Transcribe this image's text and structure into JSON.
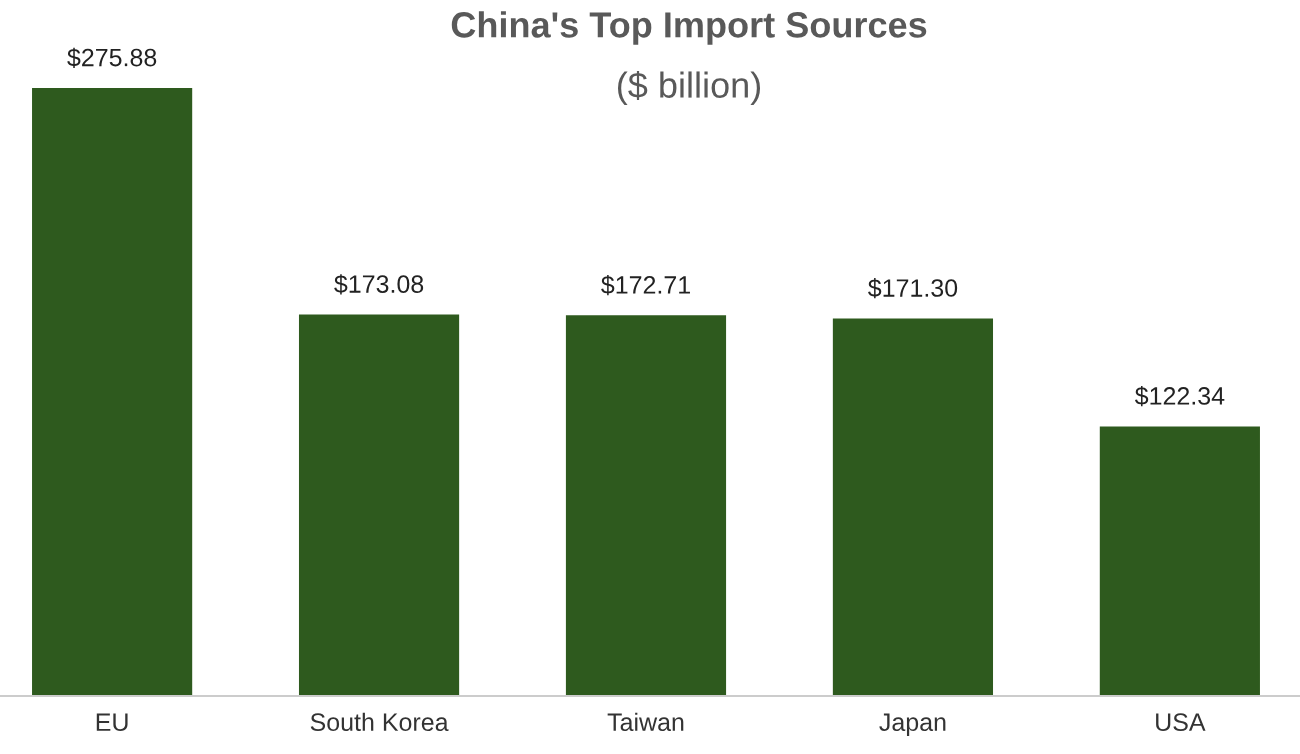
{
  "chart_data": {
    "type": "bar",
    "title": "China's Top Import Sources",
    "subtitle": "($ billion)",
    "categories": [
      "EU",
      "South Korea",
      "Taiwan",
      "Japan",
      "USA"
    ],
    "values": [
      275.88,
      173.08,
      172.71,
      171.3,
      122.34
    ],
    "value_labels": [
      "$275.88",
      "$173.08",
      "$172.71",
      "$171.30",
      "$122.34"
    ],
    "color": "#2e5a1e"
  }
}
